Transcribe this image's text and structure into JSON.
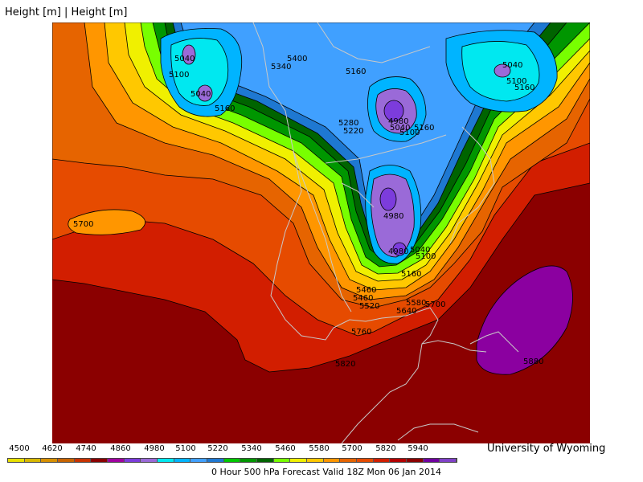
{
  "header": {
    "title": "Height [m] | Height [m]"
  },
  "credit": "University of Wyoming",
  "footer": "0 Hour 500 hPa Forecast Valid 18Z Mon 06 Jan 2014",
  "legend": {
    "tick_labels": [
      "4500",
      "4620",
      "4740",
      "4860",
      "4980",
      "5100",
      "5220",
      "5340",
      "5460",
      "5580",
      "5700",
      "5820",
      "5940"
    ],
    "colors": [
      "#e8e000",
      "#d8b800",
      "#d89000",
      "#c86400",
      "#c83200",
      "#8b0000",
      "#a000a0",
      "#7c3cdc",
      "#9a6ad8",
      "#00e8f0",
      "#00b4ff",
      "#40a0ff",
      "#1e78d2",
      "#00c800",
      "#009600",
      "#006400",
      "#78ff00",
      "#f0f000",
      "#ffc800",
      "#ff9600",
      "#e66400",
      "#e64b00",
      "#d21e00",
      "#b40000",
      "#8b0000",
      "#7000a0",
      "#8040c8"
    ]
  },
  "map": {
    "contour_labels": [
      {
        "value": "5040",
        "color": "#000"
      },
      {
        "value": "5100",
        "color": "#000"
      },
      {
        "value": "5040",
        "color": "#000"
      },
      {
        "value": "5160",
        "color": "#000"
      },
      {
        "value": "5400",
        "color": "#000"
      },
      {
        "value": "5340",
        "color": "#000"
      },
      {
        "value": "5160",
        "color": "#000"
      },
      {
        "value": "4980",
        "color": "#000"
      },
      {
        "value": "5040",
        "color": "#000"
      },
      {
        "value": "5100",
        "color": "#000"
      },
      {
        "value": "5160",
        "color": "#000"
      },
      {
        "value": "5280",
        "color": "#000"
      },
      {
        "value": "5220",
        "color": "#000"
      },
      {
        "value": "5040",
        "color": "#000"
      },
      {
        "value": "5100",
        "color": "#000"
      },
      {
        "value": "5160",
        "color": "#000"
      },
      {
        "value": "5700",
        "color": "#000"
      },
      {
        "value": "4980",
        "color": "#000"
      },
      {
        "value": "4980",
        "color": "#000"
      },
      {
        "value": "5040",
        "color": "#000"
      },
      {
        "value": "5100",
        "color": "#000"
      },
      {
        "value": "5160",
        "color": "#000"
      },
      {
        "value": "5460",
        "color": "#000"
      },
      {
        "value": "5460",
        "color": "#000"
      },
      {
        "value": "5520",
        "color": "#000"
      },
      {
        "value": "5580",
        "color": "#000"
      },
      {
        "value": "5640",
        "color": "#000"
      },
      {
        "value": "5700",
        "color": "#000"
      },
      {
        "value": "5760",
        "color": "#000"
      },
      {
        "value": "5820",
        "color": "#000"
      },
      {
        "value": "5880",
        "color": "#000"
      }
    ]
  }
}
